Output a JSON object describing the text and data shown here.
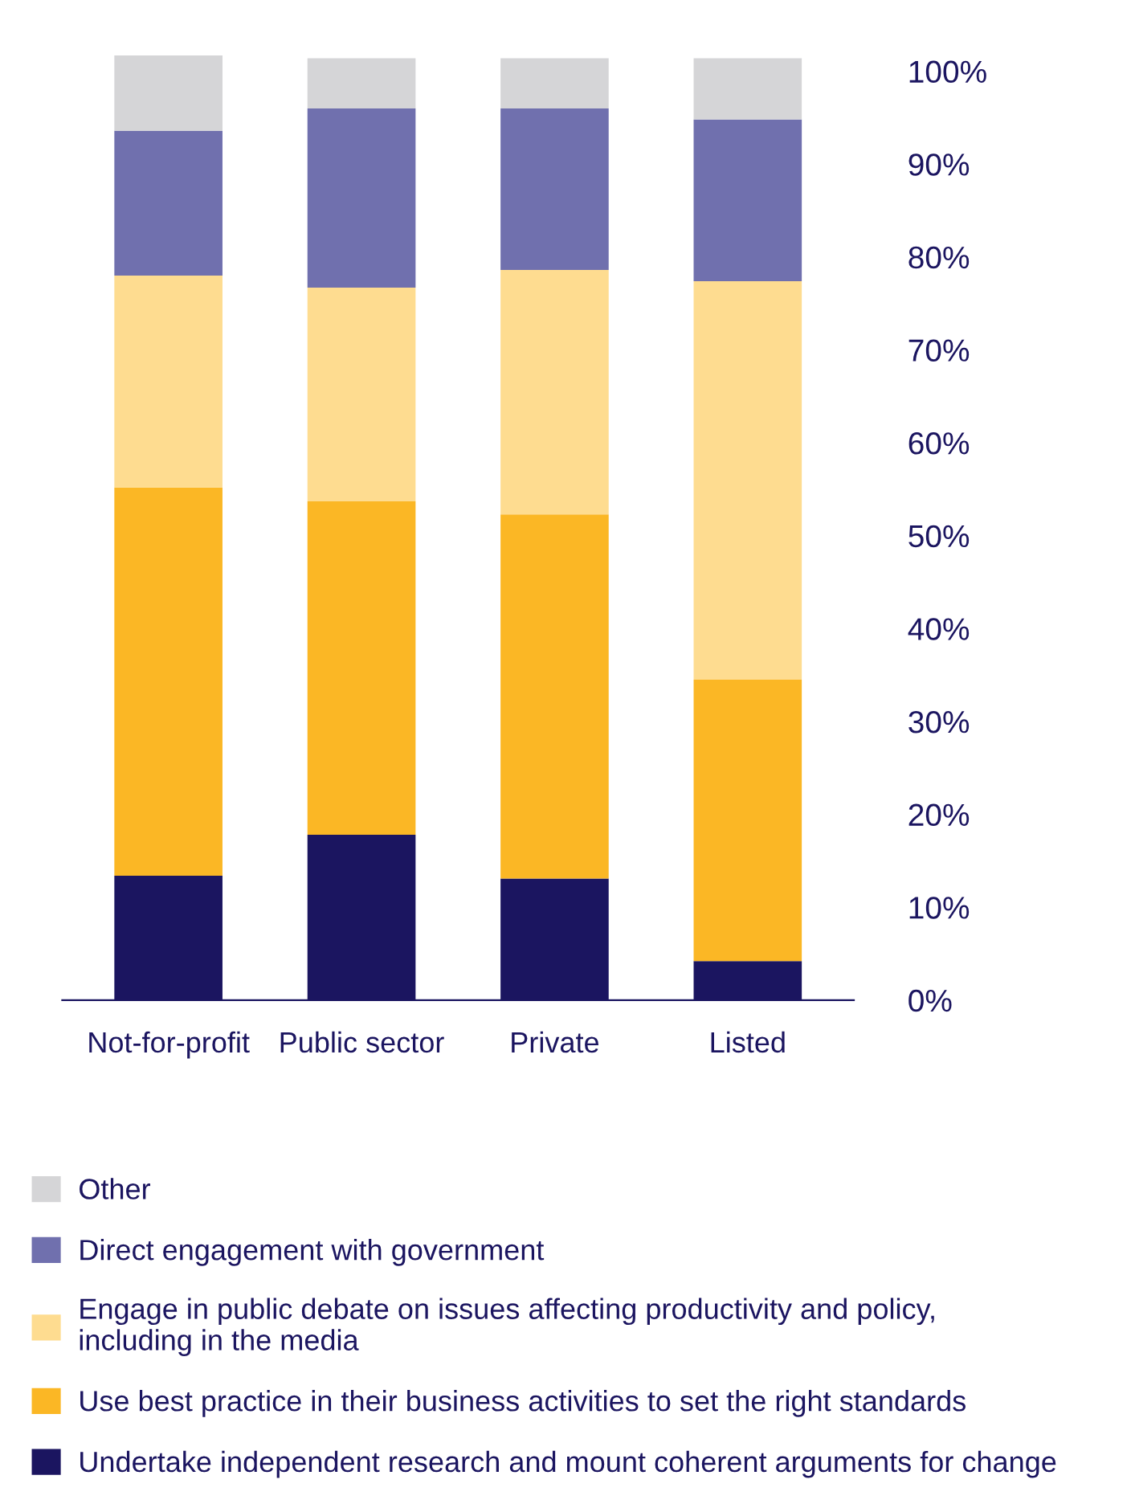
{
  "chart_data": {
    "type": "bar",
    "stacked": true,
    "categories": [
      "Not-for-profit",
      "Public sector",
      "Private",
      "Listed"
    ],
    "series": [
      {
        "name": "Undertake independent research and mount coherent arguments for change",
        "color": "#1b1560",
        "values": [
          13.4,
          17.8,
          13.1,
          4.2
        ]
      },
      {
        "name": "Use best practice in their business activities to set the right standards",
        "color": "#fbb725",
        "values": [
          41.8,
          35.9,
          39.2,
          30.3
        ]
      },
      {
        "name": "Engage in public debate on issues affecting productivity and policy,\nincluding in the media",
        "color": "#fedc90",
        "values": [
          22.8,
          23.0,
          26.3,
          42.9
        ]
      },
      {
        "name": "Direct engagement with government",
        "color": "#7070ae",
        "values": [
          15.6,
          19.3,
          17.4,
          17.4
        ]
      },
      {
        "name": "Other",
        "color": "#d5d5d7",
        "values": [
          8.1,
          5.4,
          5.4,
          6.6
        ]
      }
    ],
    "ylim": [
      0,
      102
    ],
    "yticks": [
      {
        "value": 0,
        "label": "0%"
      },
      {
        "value": 10,
        "label": "10%"
      },
      {
        "value": 20,
        "label": "20%"
      },
      {
        "value": 30,
        "label": "30%"
      },
      {
        "value": 40,
        "label": "40%"
      },
      {
        "value": 50,
        "label": "50%"
      },
      {
        "value": 60,
        "label": "60%"
      },
      {
        "value": 70,
        "label": "70%"
      },
      {
        "value": 80,
        "label": "80%"
      },
      {
        "value": 90,
        "label": "90%"
      },
      {
        "value": 100,
        "label": "100%"
      }
    ],
    "grid": false,
    "legend": "bottom"
  }
}
